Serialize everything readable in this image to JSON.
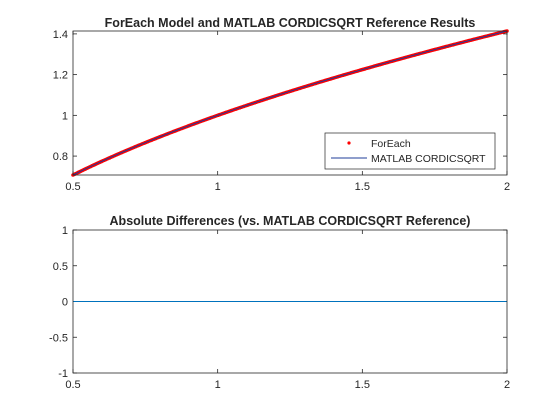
{
  "chart_data": [
    {
      "type": "line",
      "title": "ForEach Model and MATLAB CORDICSQRT Reference Results",
      "xlabel": "",
      "ylabel": "",
      "xlim": [
        0.5,
        2
      ],
      "ylim": [
        0.7071,
        1.4142
      ],
      "xticks": [
        0.5,
        1,
        1.5,
        2
      ],
      "xtick_labels": [
        "0.5",
        "1",
        "1.5",
        "2"
      ],
      "yticks": [
        0.8,
        1.0,
        1.2,
        1.4
      ],
      "ytick_labels": [
        "0.8",
        "1",
        "1.2",
        "1.4"
      ],
      "grid": false,
      "legend": "bottom-right",
      "series": [
        {
          "name": "ForEach",
          "style": "dots",
          "color": "#ff0000",
          "x": [
            0.5,
            0.5375,
            0.575,
            0.6125,
            0.65,
            0.6875,
            0.725,
            0.7625,
            0.8,
            0.8375,
            0.875,
            0.9125,
            0.95,
            0.9875,
            1.025,
            1.0625,
            1.1,
            1.1375,
            1.175,
            1.2125,
            1.25,
            1.2875,
            1.325,
            1.3625,
            1.4,
            1.4375,
            1.475,
            1.5125,
            1.55,
            1.5875,
            1.625,
            1.6625,
            1.7,
            1.7375,
            1.775,
            1.8125,
            1.85,
            1.8875,
            1.925,
            1.9625,
            2.0
          ],
          "y": [
            0.7071,
            0.7331,
            0.7583,
            0.7826,
            0.8062,
            0.8292,
            0.8515,
            0.8732,
            0.8944,
            0.9151,
            0.9354,
            0.9552,
            0.9747,
            0.9937,
            1.0124,
            1.0308,
            1.0488,
            1.0665,
            1.084,
            1.1011,
            1.118,
            1.1347,
            1.1511,
            1.1673,
            1.1832,
            1.199,
            1.2145,
            1.2298,
            1.245,
            1.2599,
            1.2748,
            1.2894,
            1.3038,
            1.3181,
            1.3323,
            1.3463,
            1.3601,
            1.3739,
            1.3874,
            1.4009,
            1.4142
          ]
        },
        {
          "name": "MATLAB CORDICSQRT",
          "style": "line",
          "color": "#1f3c99",
          "x": [
            0.5,
            0.5375,
            0.575,
            0.6125,
            0.65,
            0.6875,
            0.725,
            0.7625,
            0.8,
            0.8375,
            0.875,
            0.9125,
            0.95,
            0.9875,
            1.025,
            1.0625,
            1.1,
            1.1375,
            1.175,
            1.2125,
            1.25,
            1.2875,
            1.325,
            1.3625,
            1.4,
            1.4375,
            1.475,
            1.5125,
            1.55,
            1.5875,
            1.625,
            1.6625,
            1.7,
            1.7375,
            1.775,
            1.8125,
            1.85,
            1.8875,
            1.925,
            1.9625,
            2.0
          ],
          "y": [
            0.7071,
            0.7331,
            0.7583,
            0.7826,
            0.8062,
            0.8292,
            0.8515,
            0.8732,
            0.8944,
            0.9151,
            0.9354,
            0.9552,
            0.9747,
            0.9937,
            1.0124,
            1.0308,
            1.0488,
            1.0665,
            1.084,
            1.1011,
            1.118,
            1.1347,
            1.1511,
            1.1673,
            1.1832,
            1.199,
            1.2145,
            1.2298,
            1.245,
            1.2599,
            1.2748,
            1.2894,
            1.3038,
            1.3181,
            1.3323,
            1.3463,
            1.3601,
            1.3739,
            1.3874,
            1.4009,
            1.4142
          ]
        }
      ]
    },
    {
      "type": "line",
      "title": "Absolute Differences (vs. MATLAB CORDICSQRT Reference)",
      "xlabel": "",
      "ylabel": "",
      "xlim": [
        0.5,
        2
      ],
      "ylim": [
        -1,
        1
      ],
      "xticks": [
        0.5,
        1,
        1.5,
        2
      ],
      "xtick_labels": [
        "0.5",
        "1",
        "1.5",
        "2"
      ],
      "yticks": [
        -1,
        -0.5,
        0,
        0.5,
        1
      ],
      "ytick_labels": [
        "-1",
        "-0.5",
        "0",
        "0.5",
        "1"
      ],
      "grid": false,
      "series": [
        {
          "style": "line",
          "color": "#0072bd",
          "x": [
            0.5,
            2
          ],
          "y": [
            0,
            0
          ]
        }
      ]
    }
  ]
}
